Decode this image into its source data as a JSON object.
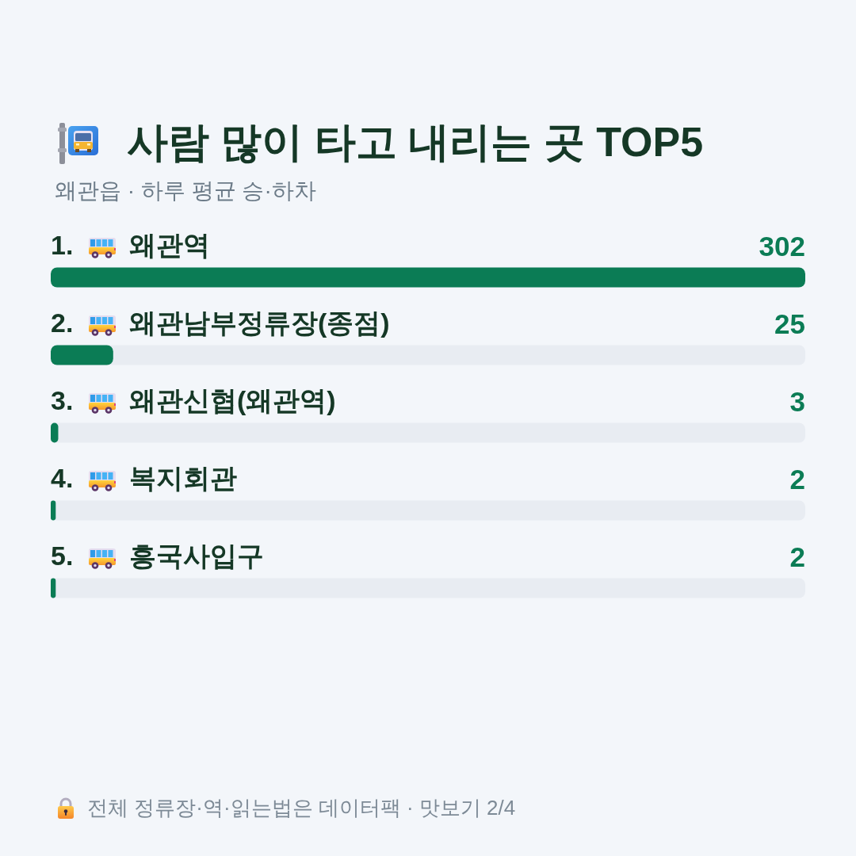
{
  "chart_data": {
    "type": "bar",
    "orientation": "horizontal",
    "title": "사람 많이 타고 내리는 곳 TOP5",
    "subtitle": "왜관읍 · 하루 평균 승·하차",
    "categories": [
      "1. 왜관역",
      "2. 왜관남부정류장(종점)",
      "3. 왜관신협(왜관역)",
      "4. 복지회관",
      "5. 흥국사입구"
    ],
    "values": [
      302,
      25,
      3,
      2,
      2
    ],
    "color": "#0b7c55",
    "xlim": [
      0,
      302
    ],
    "tick_labels": "y",
    "grid": false,
    "data_labels": true,
    "annotations": [
      "전체 정류장·역·읽는법은 데이터팩 · 맛보기 2/4"
    ]
  }
}
